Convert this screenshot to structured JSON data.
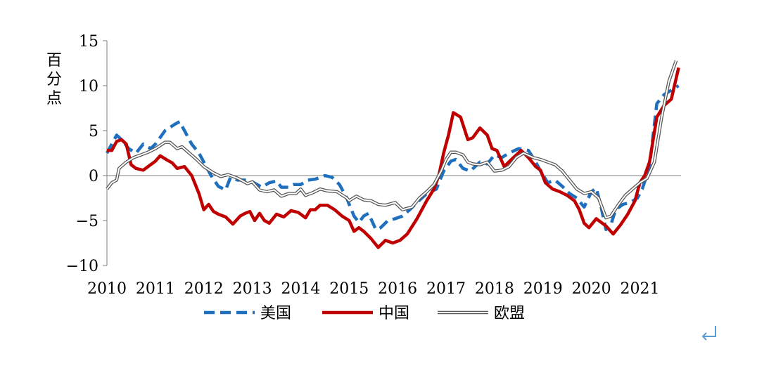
{
  "chart_data": {
    "type": "line",
    "ylabel": "百分点",
    "ylim": [
      -10,
      15
    ],
    "yticks": [
      "15",
      "10",
      "5",
      "0",
      "−5",
      "−10"
    ],
    "ytick_values": [
      15,
      10,
      5,
      0,
      -5,
      -10
    ],
    "xlim": [
      2010.0,
      2021.85
    ],
    "xticks": [
      "2010",
      "2011",
      "2012",
      "2013",
      "2014",
      "2015",
      "2016",
      "2017",
      "2018",
      "2019",
      "2020",
      "2021"
    ],
    "xtick_values": [
      2010,
      2011,
      2012,
      2013,
      2014,
      2015,
      2016,
      2017,
      2018,
      2019,
      2020,
      2021
    ],
    "legend_position": "bottom",
    "series": [
      {
        "name": "美国",
        "color": "#1f6fbf",
        "style": "dashed",
        "x": [
          2010.0,
          2010.1,
          2010.2,
          2010.3,
          2010.45,
          2010.6,
          2010.75,
          2010.9,
          2011.0,
          2011.2,
          2011.4,
          2011.5,
          2011.6,
          2011.75,
          2011.9,
          2012.0,
          2012.15,
          2012.3,
          2012.45,
          2012.55,
          2012.7,
          2012.9,
          2013.0,
          2013.2,
          2013.35,
          2013.5,
          2013.6,
          2013.75,
          2013.85,
          2014.0,
          2014.15,
          2014.3,
          2014.5,
          2014.65,
          2014.8,
          2014.95,
          2015.0,
          2015.1,
          2015.2,
          2015.3,
          2015.4,
          2015.55,
          2015.65,
          2015.8,
          2015.95,
          2016.1,
          2016.25,
          2016.4,
          2016.6,
          2016.8,
          2016.95,
          2017.1,
          2017.2,
          2017.35,
          2017.5,
          2017.7,
          2017.85,
          2018.0,
          2018.15,
          2018.3,
          2018.5,
          2018.7,
          2018.85,
          2018.95,
          2019.1,
          2019.25,
          2019.4,
          2019.55,
          2019.7,
          2019.85,
          2020.0,
          2020.1,
          2020.2,
          2020.3,
          2020.4,
          2020.5,
          2020.65,
          2020.8,
          2020.95,
          2021.05,
          2021.2,
          2021.35,
          2021.5,
          2021.65,
          2021.8
        ],
        "values": [
          2.5,
          3.5,
          4.5,
          4.0,
          3.0,
          2.5,
          3.5,
          3.0,
          3.5,
          5.0,
          5.7,
          6.0,
          5.0,
          3.5,
          2.5,
          1.5,
          0.0,
          -1.2,
          -1.6,
          -0.2,
          -0.5,
          -0.5,
          -0.7,
          -1.3,
          -0.8,
          -0.6,
          -1.3,
          -1.3,
          -1.0,
          -1.0,
          -0.5,
          -0.4,
          0.0,
          -0.2,
          -1.0,
          -2.5,
          -3.2,
          -4.5,
          -5.2,
          -4.5,
          -4.2,
          -6.0,
          -5.8,
          -5.0,
          -4.8,
          -4.5,
          -3.8,
          -3.0,
          -2.0,
          -1.5,
          0.5,
          1.6,
          1.8,
          0.8,
          0.5,
          1.5,
          1.3,
          2.3,
          2.0,
          2.5,
          3.0,
          2.8,
          1.5,
          0.5,
          -0.8,
          -0.5,
          -1.2,
          -2.0,
          -2.5,
          -3.5,
          -1.8,
          -1.4,
          -3.5,
          -6.0,
          -5.5,
          -3.8,
          -3.2,
          -3.0,
          -2.5,
          -1.5,
          1.0,
          8.0,
          9.0,
          9.5,
          10.0
        ]
      },
      {
        "name": "中国",
        "color": "#c00000",
        "style": "solid",
        "x": [
          2010.0,
          2010.1,
          2010.2,
          2010.3,
          2010.4,
          2010.5,
          2010.6,
          2010.75,
          2010.9,
          2011.0,
          2011.1,
          2011.25,
          2011.35,
          2011.45,
          2011.6,
          2011.75,
          2011.9,
          2012.0,
          2012.1,
          2012.2,
          2012.3,
          2012.45,
          2012.6,
          2012.75,
          2012.85,
          2012.95,
          2013.05,
          2013.15,
          2013.25,
          2013.35,
          2013.5,
          2013.65,
          2013.8,
          2013.95,
          2014.1,
          2014.2,
          2014.3,
          2014.4,
          2014.55,
          2014.7,
          2014.85,
          2015.0,
          2015.1,
          2015.2,
          2015.3,
          2015.45,
          2015.6,
          2015.75,
          2015.9,
          2016.05,
          2016.2,
          2016.4,
          2016.6,
          2016.75,
          2016.85,
          2016.95,
          2017.0,
          2017.05,
          2017.15,
          2017.3,
          2017.45,
          2017.55,
          2017.7,
          2017.85,
          2017.95,
          2018.05,
          2018.2,
          2018.35,
          2018.55,
          2018.7,
          2018.85,
          2018.95,
          2019.05,
          2019.2,
          2019.35,
          2019.5,
          2019.65,
          2019.75,
          2019.85,
          2019.95,
          2020.1,
          2020.2,
          2020.3,
          2020.45,
          2020.6,
          2020.75,
          2020.9,
          2021.0,
          2021.1,
          2021.2,
          2021.35,
          2021.5,
          2021.65,
          2021.8
        ],
        "values": [
          2.8,
          2.8,
          3.8,
          4.0,
          3.5,
          1.2,
          0.8,
          0.6,
          1.2,
          1.6,
          2.2,
          1.7,
          1.4,
          0.8,
          1.0,
          0.0,
          -2.0,
          -3.8,
          -3.2,
          -4.0,
          -4.3,
          -4.6,
          -5.4,
          -4.5,
          -4.2,
          -4.0,
          -5.0,
          -4.2,
          -5.0,
          -5.3,
          -4.3,
          -4.6,
          -3.9,
          -4.1,
          -4.7,
          -3.8,
          -3.8,
          -3.3,
          -3.3,
          -3.8,
          -4.5,
          -5.0,
          -6.2,
          -5.8,
          -6.2,
          -7.0,
          -8.0,
          -7.2,
          -7.5,
          -7.2,
          -6.5,
          -4.8,
          -2.8,
          -1.5,
          0.0,
          2.5,
          3.5,
          4.5,
          7.0,
          6.5,
          4.0,
          4.2,
          5.3,
          4.5,
          3.0,
          2.8,
          1.0,
          1.8,
          2.8,
          2.0,
          1.0,
          0.6,
          -0.8,
          -1.5,
          -1.8,
          -2.2,
          -2.8,
          -3.8,
          -5.3,
          -5.8,
          -4.8,
          -5.2,
          -5.6,
          -6.5,
          -5.5,
          -4.3,
          -2.8,
          -0.8,
          0.0,
          1.5,
          6.5,
          7.8,
          8.5,
          12.0
        ]
      },
      {
        "name": "欧盟",
        "color": "#ffffff",
        "style": "double",
        "outline_color": "#555555",
        "x": [
          2010.0,
          2010.1,
          2010.2,
          2010.25,
          2010.4,
          2010.55,
          2010.7,
          2010.85,
          2011.0,
          2011.2,
          2011.3,
          2011.45,
          2011.55,
          2011.7,
          2011.85,
          2012.0,
          2012.2,
          2012.35,
          2012.5,
          2012.7,
          2012.9,
          2013.0,
          2013.15,
          2013.3,
          2013.45,
          2013.6,
          2013.75,
          2013.9,
          2014.0,
          2014.1,
          2014.25,
          2014.4,
          2014.55,
          2014.75,
          2014.95,
          2015.0,
          2015.15,
          2015.3,
          2015.45,
          2015.6,
          2015.75,
          2015.95,
          2016.1,
          2016.3,
          2016.45,
          2016.6,
          2016.75,
          2016.9,
          2017.0,
          2017.1,
          2017.2,
          2017.35,
          2017.45,
          2017.55,
          2017.7,
          2017.85,
          2018.0,
          2018.15,
          2018.3,
          2018.45,
          2018.6,
          2018.8,
          2018.95,
          2019.1,
          2019.25,
          2019.4,
          2019.55,
          2019.7,
          2019.85,
          2020.0,
          2020.15,
          2020.3,
          2020.4,
          2020.55,
          2020.7,
          2020.85,
          2021.0,
          2021.15,
          2021.3,
          2021.45,
          2021.6,
          2021.75
        ],
        "values": [
          -1.5,
          -0.8,
          -0.5,
          0.8,
          1.5,
          2.0,
          2.3,
          2.6,
          3.0,
          3.7,
          3.7,
          3.0,
          3.2,
          2.5,
          1.8,
          1.0,
          0.3,
          -0.1,
          0.1,
          -0.3,
          -0.9,
          -0.7,
          -1.6,
          -1.8,
          -1.6,
          -2.3,
          -2.0,
          -2.0,
          -1.5,
          -2.2,
          -1.9,
          -1.5,
          -1.7,
          -1.8,
          -2.5,
          -2.8,
          -2.3,
          -2.7,
          -2.8,
          -3.2,
          -3.3,
          -3.0,
          -3.8,
          -3.5,
          -2.5,
          -1.8,
          -1.0,
          0.5,
          1.8,
          2.6,
          2.6,
          2.3,
          1.5,
          1.3,
          1.2,
          1.5,
          0.5,
          0.6,
          1.0,
          2.0,
          2.5,
          2.0,
          1.8,
          1.5,
          1.2,
          0.5,
          -0.5,
          -1.5,
          -2.0,
          -1.8,
          -2.5,
          -4.7,
          -4.5,
          -3.3,
          -2.2,
          -1.5,
          -0.8,
          -0.3,
          1.5,
          6.5,
          10.5,
          12.8
        ]
      }
    ]
  }
}
